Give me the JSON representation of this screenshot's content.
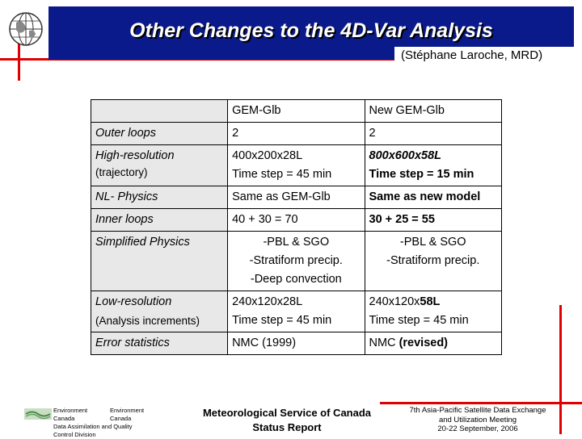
{
  "header": {
    "title": "Other Changes to the 4D-Var Analysis",
    "subtitle": "(Stéphane Laroche, MRD)"
  },
  "table": {
    "columns": [
      "",
      "GEM-Glb",
      "New GEM-Glb"
    ],
    "rows": [
      {
        "label": "Outer loops",
        "label_sub": "",
        "old": [
          "2"
        ],
        "new": [
          "2"
        ]
      },
      {
        "label": "High-resolution",
        "label_sub": "(trajectory)",
        "old": [
          "400x200x28L",
          "Time step = 45 min"
        ],
        "new": [
          "800x600x58L",
          "Time step = 15 min"
        ]
      },
      {
        "label": "NL- Physics",
        "label_sub": "",
        "old": [
          "Same as GEM-Glb"
        ],
        "new": [
          "Same as new model"
        ]
      },
      {
        "label": "Inner loops",
        "label_sub": "",
        "old": [
          "40 + 30 = 70"
        ],
        "new": [
          "30 + 25 = 55"
        ]
      },
      {
        "label": "Simplified Physics",
        "label_sub": "",
        "old": [
          "-PBL & SGO",
          "-Stratiform precip.",
          "-Deep convection"
        ],
        "new": [
          "-PBL & SGO",
          "-Stratiform precip."
        ]
      },
      {
        "label": "Low-resolution",
        "label_sub": "(Analysis increments)",
        "old": [
          "240x120x28L",
          "Time step = 45 min"
        ],
        "new_prefix": "240x120x",
        "new_bold": "58L",
        "new_line2": "Time step = 45 min"
      },
      {
        "label": "Error statistics",
        "label_sub": "",
        "old": [
          "NMC (1999)"
        ],
        "new_prefix": "NMC ",
        "new_bold": "(revised)"
      }
    ]
  },
  "footer": {
    "left": {
      "row1": [
        "Environment",
        "Environment"
      ],
      "row2": [
        "Canada",
        "Canada"
      ],
      "row3": "Data Assimilation and Quality",
      "row4": "Control Division"
    },
    "mid_line1": "Meteorological Service of Canada",
    "mid_line2": "Status Report",
    "right_line1": "7th Asia-Pacific  Satellite Data Exchange",
    "right_line2": "and Utilization Meeting",
    "right_line3": "20-22 September, 2006"
  },
  "colors": {
    "title_bar": "#0a1a8a",
    "accent_red": "#e00000",
    "row_header_bg": "#e8e8e8"
  }
}
